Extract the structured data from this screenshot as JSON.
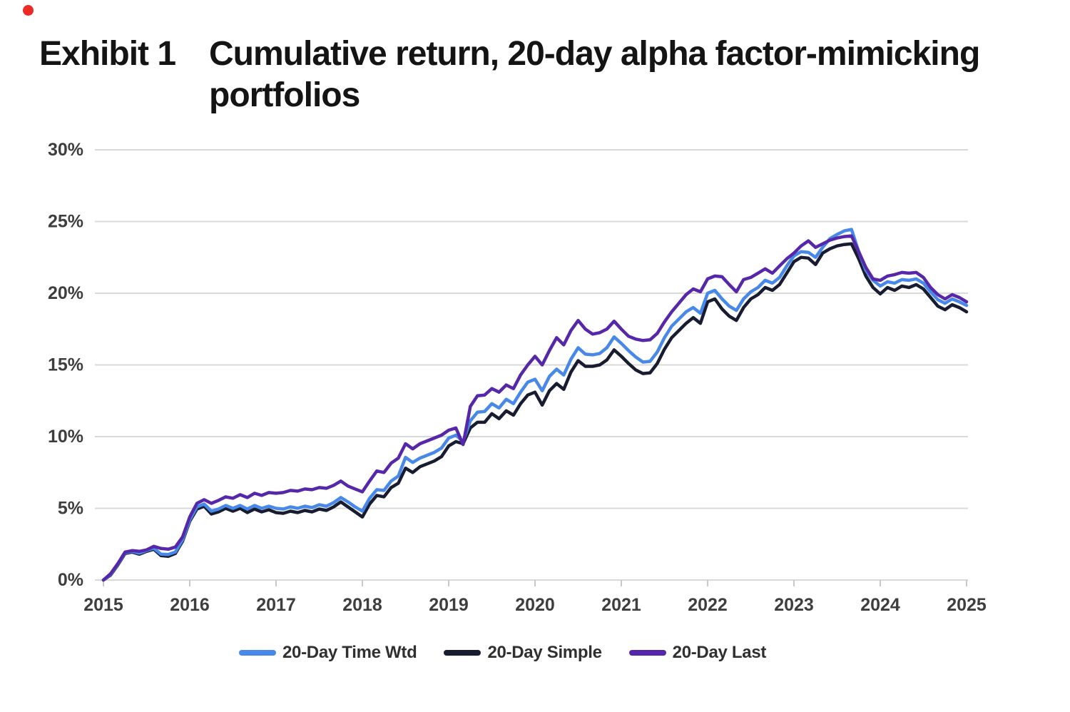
{
  "page": {
    "red_dot_color": "#ec2b24"
  },
  "header": {
    "exhibit_label": "Exhibit 1",
    "title_line1": "Cumulative return, 20-day alpha factor-mimicking",
    "title_line2": "portfolios"
  },
  "chart_data": {
    "type": "line",
    "title": "Cumulative return, 20-day alpha factor-mimicking portfolios",
    "xlabel": "",
    "ylabel": "",
    "ylim": [
      0,
      30
    ],
    "xlim": [
      2015,
      2025
    ],
    "grid": "horizontal",
    "legend_position": "bottom",
    "x_start": 2015,
    "x_interval": "monthly",
    "y_ticks": [
      {
        "value": 0,
        "label": "0%"
      },
      {
        "value": 5,
        "label": "5%"
      },
      {
        "value": 10,
        "label": "10%"
      },
      {
        "value": 15,
        "label": "15%"
      },
      {
        "value": 20,
        "label": "20%"
      },
      {
        "value": 25,
        "label": "25%"
      },
      {
        "value": 30,
        "label": "30%"
      }
    ],
    "x_ticks": [
      {
        "value": 2015,
        "label": "2015"
      },
      {
        "value": 2016,
        "label": "2016"
      },
      {
        "value": 2017,
        "label": "2017"
      },
      {
        "value": 2018,
        "label": "2018"
      },
      {
        "value": 2019,
        "label": "2019"
      },
      {
        "value": 2020,
        "label": "2020"
      },
      {
        "value": 2021,
        "label": "2021"
      },
      {
        "value": 2022,
        "label": "2022"
      },
      {
        "value": 2023,
        "label": "2023"
      },
      {
        "value": 2024,
        "label": "2024"
      },
      {
        "value": 2025,
        "label": "2025"
      }
    ],
    "series": [
      {
        "name": "20-Day Time Wtd",
        "color": "#4788e8",
        "values": [
          0.0,
          0.4,
          1.1,
          1.9,
          2.0,
          1.87,
          2.05,
          2.22,
          1.8,
          1.78,
          1.95,
          2.8,
          4.2,
          5.1,
          5.3,
          4.8,
          4.95,
          5.2,
          5.0,
          5.2,
          4.95,
          5.2,
          5.0,
          5.15,
          5.0,
          4.95,
          5.1,
          5.0,
          5.15,
          5.05,
          5.25,
          5.15,
          5.4,
          5.75,
          5.45,
          5.1,
          4.8,
          5.7,
          6.3,
          6.25,
          6.9,
          7.25,
          8.55,
          8.2,
          8.5,
          8.7,
          8.9,
          9.2,
          9.9,
          10.1,
          9.65,
          11.1,
          11.7,
          11.75,
          12.3,
          12.0,
          12.6,
          12.3,
          13.1,
          13.8,
          14.0,
          13.2,
          14.2,
          14.7,
          14.3,
          15.4,
          16.2,
          15.75,
          15.7,
          15.8,
          16.2,
          16.95,
          16.5,
          16.0,
          15.55,
          15.2,
          15.25,
          15.9,
          16.9,
          17.7,
          18.2,
          18.7,
          19.0,
          18.6,
          20.0,
          20.2,
          19.6,
          19.1,
          18.8,
          19.6,
          20.1,
          20.4,
          20.9,
          20.7,
          21.1,
          21.9,
          22.6,
          22.9,
          22.85,
          22.5,
          23.2,
          23.8,
          24.1,
          24.35,
          24.45,
          22.9,
          21.6,
          20.9,
          20.5,
          20.8,
          20.7,
          20.95,
          20.9,
          21.0,
          20.7,
          20.1,
          19.55,
          19.3,
          19.6,
          19.4,
          19.15
        ]
      },
      {
        "name": "20-Day Simple",
        "color": "#171c30",
        "values": [
          0.0,
          0.35,
          1.05,
          1.85,
          1.95,
          1.8,
          2.0,
          2.15,
          1.7,
          1.65,
          1.85,
          2.7,
          4.1,
          4.95,
          5.15,
          4.6,
          4.75,
          5.0,
          4.8,
          5.0,
          4.7,
          4.95,
          4.75,
          4.9,
          4.7,
          4.65,
          4.8,
          4.7,
          4.85,
          4.75,
          4.95,
          4.85,
          5.1,
          5.45,
          5.1,
          4.75,
          4.4,
          5.3,
          5.9,
          5.8,
          6.45,
          6.75,
          7.8,
          7.5,
          7.9,
          8.1,
          8.3,
          8.6,
          9.35,
          9.65,
          9.5,
          10.6,
          11.0,
          11.0,
          11.6,
          11.25,
          11.8,
          11.5,
          12.3,
          12.9,
          13.1,
          12.2,
          13.2,
          13.7,
          13.3,
          14.5,
          15.3,
          14.9,
          14.9,
          15.0,
          15.35,
          16.05,
          15.6,
          15.1,
          14.65,
          14.4,
          14.45,
          15.1,
          16.1,
          16.9,
          17.4,
          17.9,
          18.3,
          17.9,
          19.4,
          19.6,
          18.9,
          18.4,
          18.1,
          19.0,
          19.6,
          19.9,
          20.4,
          20.2,
          20.6,
          21.4,
          22.2,
          22.5,
          22.45,
          22.0,
          22.8,
          23.1,
          23.3,
          23.4,
          23.45,
          22.4,
          21.2,
          20.4,
          19.95,
          20.4,
          20.2,
          20.5,
          20.4,
          20.6,
          20.3,
          19.7,
          19.1,
          18.85,
          19.2,
          19.0,
          18.7
        ]
      },
      {
        "name": "20-Day Last",
        "color": "#5628a9",
        "values": [
          0.0,
          0.45,
          1.15,
          1.95,
          2.05,
          2.0,
          2.1,
          2.35,
          2.2,
          2.15,
          2.3,
          3.0,
          4.4,
          5.35,
          5.6,
          5.35,
          5.55,
          5.8,
          5.7,
          5.95,
          5.75,
          6.05,
          5.9,
          6.1,
          6.05,
          6.1,
          6.25,
          6.2,
          6.35,
          6.3,
          6.45,
          6.4,
          6.6,
          6.9,
          6.55,
          6.35,
          6.15,
          6.9,
          7.6,
          7.5,
          8.15,
          8.5,
          9.5,
          9.15,
          9.5,
          9.7,
          9.9,
          10.1,
          10.45,
          10.6,
          9.45,
          12.1,
          12.85,
          12.9,
          13.35,
          13.1,
          13.6,
          13.35,
          14.3,
          15.0,
          15.6,
          15.0,
          16.0,
          16.9,
          16.4,
          17.4,
          18.1,
          17.5,
          17.15,
          17.25,
          17.5,
          18.05,
          17.5,
          17.0,
          16.8,
          16.7,
          16.75,
          17.2,
          18.0,
          18.7,
          19.3,
          19.9,
          20.3,
          20.1,
          21.0,
          21.2,
          21.15,
          20.6,
          20.1,
          20.95,
          21.1,
          21.4,
          21.7,
          21.4,
          21.9,
          22.4,
          22.8,
          23.3,
          23.65,
          23.2,
          23.45,
          23.7,
          23.85,
          23.95,
          24.0,
          22.9,
          21.8,
          21.0,
          20.9,
          21.2,
          21.3,
          21.45,
          21.4,
          21.45,
          21.1,
          20.4,
          19.9,
          19.6,
          19.9,
          19.7,
          19.4
        ]
      }
    ]
  },
  "legend": {
    "items": [
      "20-Day Time Wtd",
      "20-Day Simple",
      "20-Day Last"
    ]
  }
}
